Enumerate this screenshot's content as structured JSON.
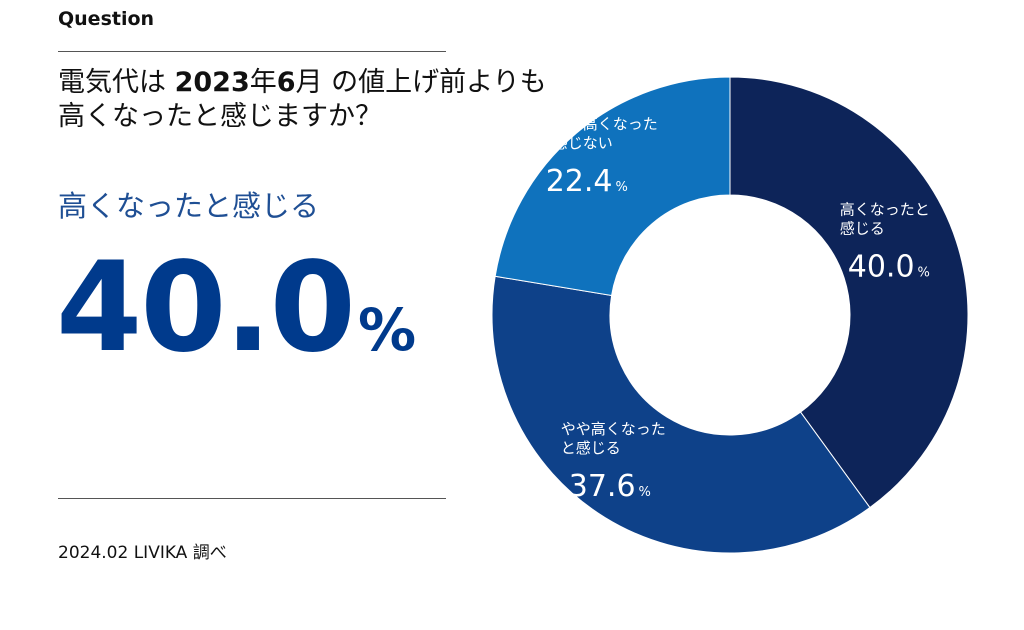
{
  "header": {
    "eyebrow": "Question",
    "question_line1_pre": "電気代は ",
    "question_line1_bold": "2023",
    "question_line1_mid": "年",
    "question_line1_bold2": "6",
    "question_line1_post": "月 の値上げ前よりも",
    "question_line2": "高くなったと感じますか？"
  },
  "highlight": {
    "label": "高くなったと感じる",
    "value": "40.0",
    "unit": "%"
  },
  "source": "2024.02 LIVIKA 調べ",
  "colors": {
    "dark_navy": "#0d2459",
    "navy": "#0e4189",
    "blue": "#0f72bd",
    "highlight_text": "#1f4f94",
    "big_value": "#003a8c"
  },
  "chart_data": {
    "type": "pie",
    "donut": true,
    "start": "top",
    "direction": "clockwise",
    "slices": [
      {
        "label_line1": "高くなったと",
        "label_line2": "感じる",
        "value": 40.0,
        "value_text": "40.0",
        "unit": "%",
        "color": "#0d2459"
      },
      {
        "label_line1": "やや高くなった",
        "label_line2": "と感じる",
        "value": 37.6,
        "value_text": "37.6",
        "unit": "%",
        "color": "#0e4189"
      },
      {
        "label_line1": "あまり高くなった",
        "label_line2": "と感じない",
        "value": 22.4,
        "value_text": "22.4",
        "unit": "%",
        "color": "#0f72bd"
      }
    ]
  }
}
